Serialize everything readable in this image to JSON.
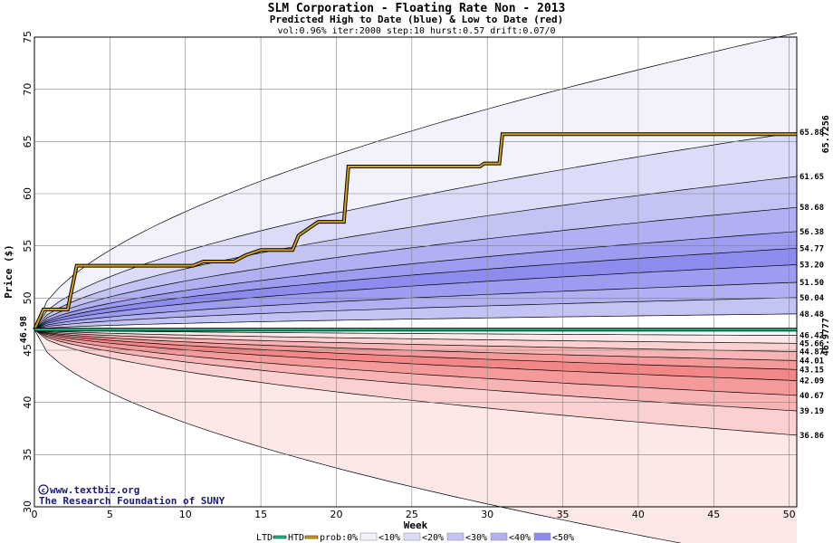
{
  "chart_data": {
    "type": "area",
    "title": "SLM Corporation - Floating Rate Non - 2013",
    "subtitle": "Predicted High to Date (blue) &  Low to Date (red)",
    "params": "vol:0.96% iter:2000 step:10 hurst:0.57 drift:0.07/0",
    "xlabel": "Week",
    "ylabel": "Price ($)",
    "xlim": [
      0,
      50.5
    ],
    "ylim": [
      30,
      75
    ],
    "xticks": [
      "0",
      "5",
      "10",
      "15",
      "20",
      "25",
      "30",
      "35",
      "40",
      "45",
      "50"
    ],
    "yticks": [
      "30",
      "35",
      "40",
      "45",
      "50",
      "55",
      "60",
      "65",
      "70",
      "75"
    ],
    "grid": true,
    "start_price": 46.98,
    "start_label": "46.98",
    "right_labels": [
      "65.88",
      "61.65",
      "58.68",
      "56.38",
      "54.77",
      "53.20",
      "51.50",
      "50.04",
      "48.48",
      "46.42",
      "45.66",
      "44.87",
      "44.01",
      "43.15",
      "42.09",
      "40.67",
      "39.19",
      "36.86"
    ],
    "right_values": [
      65.88,
      61.65,
      58.68,
      56.38,
      54.77,
      53.2,
      51.5,
      50.04,
      48.48,
      46.42,
      45.66,
      44.87,
      44.01,
      43.15,
      42.09,
      40.67,
      39.19,
      36.86
    ],
    "high_bands_end": [
      75.4,
      65.88,
      61.65,
      58.68,
      56.38,
      54.77,
      53.2,
      51.5,
      50.04,
      48.48
    ],
    "low_bands_end": [
      46.42,
      45.66,
      44.87,
      44.01,
      43.15,
      42.09,
      40.67,
      39.19,
      36.86,
      24.5
    ],
    "htd_label": "65.7256",
    "htd_steps": [
      [
        0,
        46.98
      ],
      [
        0.6,
        48.9
      ],
      [
        2.2,
        48.9
      ],
      [
        2.8,
        53.1
      ],
      [
        10.5,
        53.1
      ],
      [
        11.2,
        53.5
      ],
      [
        13.2,
        53.5
      ],
      [
        14.0,
        54.1
      ],
      [
        15.0,
        54.6
      ],
      [
        17.1,
        54.6
      ],
      [
        17.5,
        56.0
      ],
      [
        18.3,
        56.8
      ],
      [
        18.8,
        57.3
      ],
      [
        20.5,
        57.3
      ],
      [
        20.8,
        62.6
      ],
      [
        29.5,
        62.6
      ],
      [
        29.8,
        62.9
      ],
      [
        30.8,
        62.9
      ],
      [
        31.0,
        65.7
      ],
      [
        50.5,
        65.7
      ]
    ],
    "ltd_label": "46.9777",
    "ltd_value": 46.98,
    "colors": {
      "grid": "#808080",
      "htd_line": "#d4a017",
      "ltd_line": "#17c08f",
      "htd_label": "#b8860b",
      "ltd_label": "#0a9a6e",
      "title": "#000000",
      "high_fills": [
        "#f2f2fd",
        "#dcdcf8",
        "#c4c4f4",
        "#b0b0f2",
        "#9c9cf0",
        "#8c8cee",
        "#9c9cf0",
        "#b0b0f2",
        "#c4c4f4"
      ],
      "low_fills": [
        "#fde8e8",
        "#fbd0d0",
        "#f8b4b4",
        "#f59a9a",
        "#f38686",
        "#f59a9a",
        "#f8b4b4",
        "#fbd0d0",
        "#fde8e8"
      ]
    }
  },
  "watermark": {
    "line1": "www.textbiz.org",
    "line2": "The Research Foundation of SUNY"
  },
  "legend": {
    "ltd": "LTD",
    "htd": "HTD",
    "prob": "prob:0%",
    "items": [
      "<10%",
      "<20%",
      "<30%",
      "<40%",
      "<50%"
    ],
    "colors": [
      "#f2f2fd",
      "#dcdcf8",
      "#c4c4f4",
      "#b0b0f2",
      "#8c8cee"
    ]
  }
}
